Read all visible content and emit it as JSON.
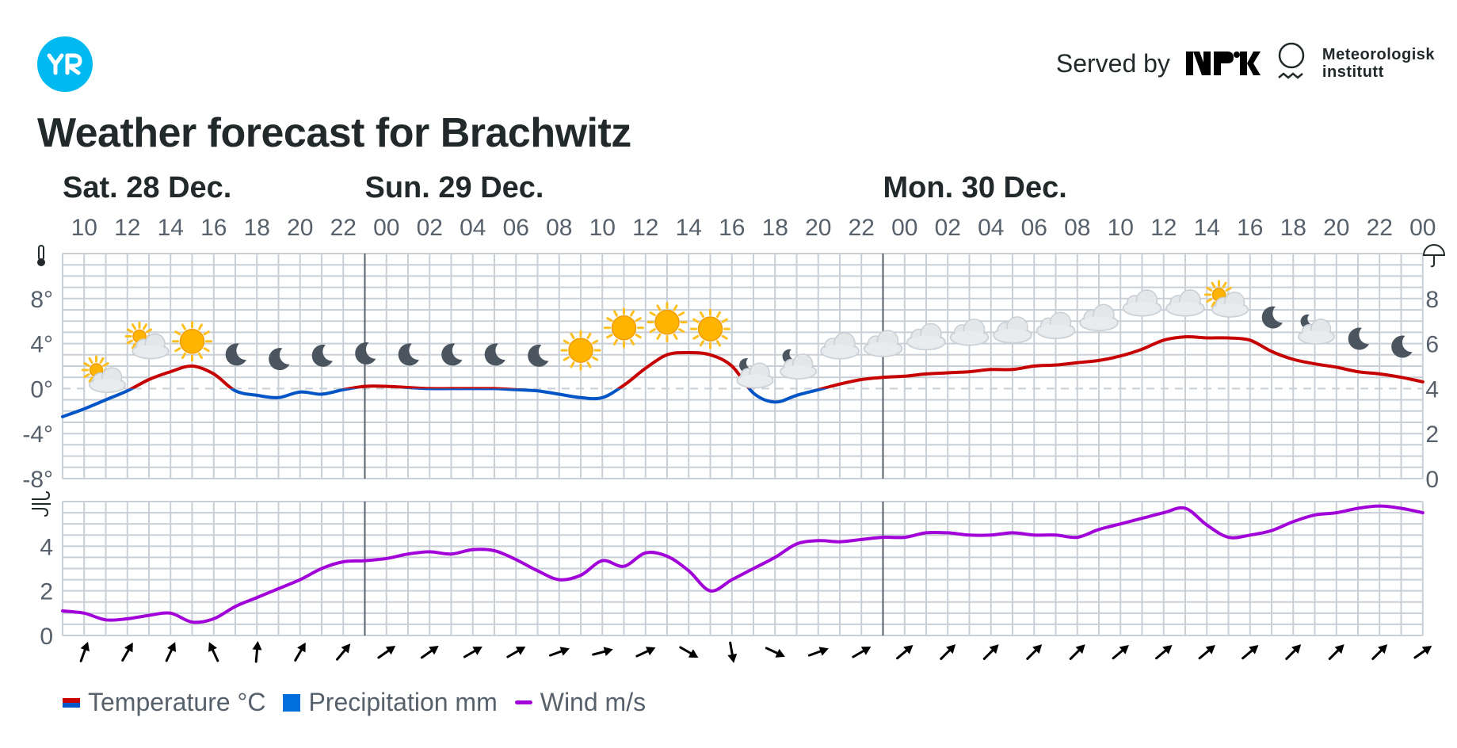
{
  "header": {
    "logo": "YR",
    "served_by": "Served by",
    "nrk": "NRK",
    "met_line1": "Meteorologisk",
    "met_line2": "institutt"
  },
  "title": "Weather forecast for Brachwitz",
  "colors": {
    "temp_warm": "#c60000",
    "temp_cold": "#0055c6",
    "precipitation": "#006edb",
    "wind": "#a100d9",
    "grid": "#c8cfd6",
    "yr_blue": "#00b9f1"
  },
  "chart_data": {
    "type": "line",
    "days": [
      {
        "label": "Sat. 28 Dec.",
        "start_index": 0
      },
      {
        "label": "Sun. 29 Dec.",
        "start_index": 14
      },
      {
        "label": "Mon. 30 Dec.",
        "start_index": 38
      }
    ],
    "hour_labels": [
      "10",
      "12",
      "14",
      "16",
      "18",
      "20",
      "22",
      "00",
      "02",
      "04",
      "06",
      "08",
      "10",
      "12",
      "14",
      "16",
      "18",
      "20",
      "22",
      "00",
      "02",
      "04",
      "06",
      "08",
      "10",
      "12",
      "14",
      "16",
      "18",
      "20",
      "22",
      "00"
    ],
    "temperature": {
      "name": "Temperature °C",
      "unit": "°C",
      "ylim": [
        -8,
        12
      ],
      "ticks": [
        "8°",
        "4°",
        "0°",
        "-4°",
        "-8°"
      ],
      "tick_values": [
        8,
        4,
        0,
        -4,
        -8
      ],
      "x": [
        0,
        1,
        2,
        3,
        4,
        5,
        6,
        7,
        8,
        9,
        10,
        11,
        12,
        13,
        14,
        15,
        16,
        17,
        18,
        19,
        20,
        21,
        22,
        23,
        24,
        25,
        26,
        27,
        28,
        29,
        30,
        31,
        32,
        33,
        34,
        35,
        36,
        37,
        38,
        39,
        40,
        41,
        42,
        43,
        44,
        45,
        46,
        47,
        48,
        49,
        50,
        51,
        52,
        53,
        54,
        55,
        56,
        57,
        58,
        59,
        60,
        61,
        62,
        63
      ],
      "values": [
        -2.5,
        -1.8,
        -1.0,
        -0.2,
        0.8,
        1.5,
        2.0,
        1.3,
        -0.2,
        -0.6,
        -0.8,
        -0.3,
        -0.5,
        -0.1,
        0.2,
        0.2,
        0.1,
        0.0,
        0.0,
        0.0,
        0.0,
        -0.1,
        -0.2,
        -0.5,
        -0.8,
        -0.8,
        0.3,
        1.8,
        3.0,
        3.2,
        3.0,
        2.0,
        -0.4,
        -1.2,
        -0.6,
        -0.1,
        0.4,
        0.8,
        1.0,
        1.1,
        1.3,
        1.4,
        1.5,
        1.7,
        1.7,
        2.0,
        2.1,
        2.3,
        2.5,
        2.9,
        3.5,
        4.3,
        4.6,
        4.5,
        4.5,
        4.3,
        3.3,
        2.6,
        2.2,
        1.9,
        1.5,
        1.3,
        1.0,
        0.6
      ]
    },
    "precipitation": {
      "name": "Precipitation mm",
      "unit": "mm",
      "ylim": [
        0,
        10
      ],
      "ticks": [
        "8",
        "6",
        "4",
        "2",
        "0"
      ],
      "tick_values": [
        8,
        6,
        4,
        2,
        0
      ]
    },
    "wind": {
      "name": "Wind m/s",
      "unit": "m/s",
      "ylim": [
        0,
        6
      ],
      "ticks": [
        "4",
        "2",
        "0"
      ],
      "tick_values": [
        4,
        2,
        0
      ],
      "x": [
        0,
        1,
        2,
        3,
        4,
        5,
        6,
        7,
        8,
        9,
        10,
        11,
        12,
        13,
        14,
        15,
        16,
        17,
        18,
        19,
        20,
        21,
        22,
        23,
        24,
        25,
        26,
        27,
        28,
        29,
        30,
        31,
        32,
        33,
        34,
        35,
        36,
        37,
        38,
        39,
        40,
        41,
        42,
        43,
        44,
        45,
        46,
        47,
        48,
        49,
        50,
        51,
        52,
        53,
        54,
        55,
        56,
        57,
        58,
        59,
        60,
        61,
        62,
        63
      ],
      "values": [
        1.1,
        1.0,
        0.7,
        0.75,
        0.9,
        1.0,
        0.6,
        0.75,
        1.3,
        1.7,
        2.1,
        2.5,
        3.0,
        3.3,
        3.35,
        3.45,
        3.65,
        3.75,
        3.65,
        3.85,
        3.8,
        3.4,
        2.9,
        2.5,
        2.7,
        3.35,
        3.1,
        3.7,
        3.55,
        2.9,
        2.0,
        2.5,
        3.0,
        3.5,
        4.1,
        4.25,
        4.2,
        4.3,
        4.4,
        4.4,
        4.6,
        4.6,
        4.5,
        4.5,
        4.6,
        4.5,
        4.5,
        4.4,
        4.75,
        5.0,
        5.25,
        5.5,
        5.7,
        4.95,
        4.4,
        4.5,
        4.7,
        5.1,
        5.4,
        5.5,
        5.7,
        5.8,
        5.7,
        5.5
      ]
    },
    "symbols": [
      "partly-cloudy-day",
      "partly-cloudy-day",
      "clear-day",
      "clear-night",
      "clear-night",
      "clear-night",
      "clear-night",
      "clear-night",
      "clear-night",
      "clear-night",
      "clear-night",
      "clear-day",
      "clear-day",
      "clear-day",
      "clear-day",
      "partly-cloudy-night",
      "partly-cloudy-night",
      "cloudy",
      "cloudy",
      "cloudy",
      "cloudy",
      "cloudy",
      "cloudy",
      "cloudy",
      "cloudy",
      "cloudy",
      "partly-cloudy-day",
      "clear-night",
      "partly-cloudy-night",
      "clear-night",
      "clear-night"
    ],
    "symbol_temps": [
      0.8,
      3.8,
      4.2,
      3.0,
      2.6,
      2.9,
      3.1,
      3.0,
      3.0,
      3.0,
      2.9,
      3.4,
      5.4,
      5.9,
      5.3,
      1.2,
      2.0,
      3.7,
      3.9,
      4.5,
      4.9,
      5.1,
      5.5,
      6.2,
      7.5,
      7.5,
      7.5,
      6.3,
      5.1,
      4.4,
      3.7
    ],
    "wind_dir_deg": [
      20,
      30,
      25,
      -25,
      5,
      30,
      40,
      55,
      55,
      60,
      60,
      70,
      75,
      65,
      120,
      170,
      115,
      70,
      60,
      50,
      45,
      45,
      45,
      45,
      50,
      50,
      50,
      50,
      45,
      45,
      45,
      55
    ],
    "grid": true,
    "legend_position": "bottom-left"
  },
  "legend": [
    {
      "label": "Temperature °C"
    },
    {
      "label": "Precipitation mm"
    },
    {
      "label": "Wind m/s"
    }
  ]
}
